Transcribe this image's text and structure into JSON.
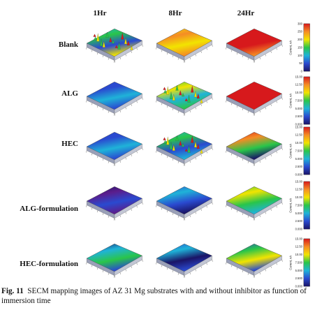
{
  "figure": {
    "columns": [
      "1Hr",
      "8Hr",
      "24Hr"
    ],
    "rows": [
      "Blank",
      "ALG",
      "HEC",
      "ALG-formulation",
      "HEC-formulation"
    ],
    "colorbar_label": "Current, nA",
    "colorbar_ticks": {
      "blank": [
        "300",
        "250",
        "200",
        "150",
        "100",
        "50",
        "0"
      ],
      "alg": [
        "15.00",
        "12.50",
        "10.00",
        "7.500",
        "5.000",
        "2.500",
        "0.000"
      ],
      "hec": [
        "15.00",
        "12.50",
        "10.00",
        "7.500",
        "5.000",
        "2.500",
        "0.000"
      ],
      "alg_formulation": [
        "15.00",
        "12.50",
        "10.00",
        "7.500",
        "5.000",
        "2.500",
        "0.000"
      ],
      "hec_formulation": [
        "15.00",
        "12.50",
        "10.00",
        "7.500",
        "5.000",
        "2.500",
        "0.000"
      ]
    },
    "colors": {
      "red": "#d7191c",
      "orange": "#f58c25",
      "yellow": "#f2e400",
      "green": "#29c54a",
      "cyan": "#1fb3d8",
      "blue": "#2a4ad0",
      "navy": "#1a1466",
      "purple": "#5b1d8c"
    }
  },
  "caption": {
    "label": "Fig. 11",
    "text": "SECM mapping images of AZ 31 Mg substrates with and without inhibitor as function of immersion time"
  }
}
